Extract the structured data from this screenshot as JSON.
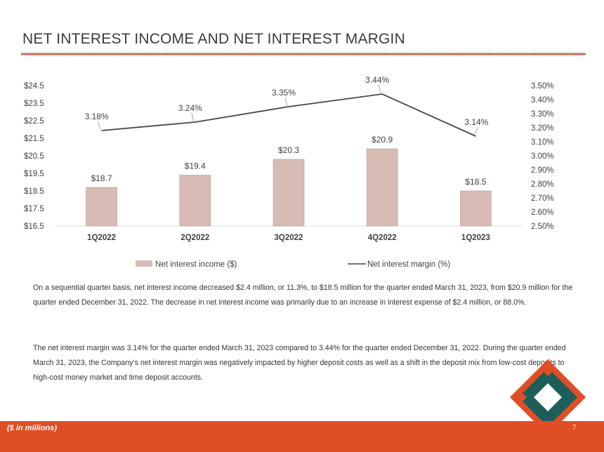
{
  "page": {
    "title": "NET INTEREST INCOME AND NET INTEREST MARGIN",
    "footnote": "($ in millions)",
    "page_number": "7",
    "colors": {
      "accent": "#e04e25",
      "bar": "#d6bcb4",
      "line": "#4a4446",
      "logo_teal": "#1e5e5a"
    }
  },
  "chart_data": {
    "type": "bar",
    "categories": [
      "1Q2022",
      "2Q2022",
      "3Q2022",
      "4Q2022",
      "1Q2023"
    ],
    "series": [
      {
        "name": "Net interest income ($)",
        "type": "bar",
        "axis": "left",
        "values": [
          18.7,
          19.4,
          20.3,
          20.9,
          18.5
        ],
        "labels": [
          "$18.7",
          "$19.4",
          "$20.3",
          "$20.9",
          "$18.5"
        ]
      },
      {
        "name": "Net interest margin (%)",
        "type": "line",
        "axis": "right",
        "values": [
          3.18,
          3.24,
          3.35,
          3.44,
          3.14
        ],
        "labels": [
          "3.18%",
          "3.24%",
          "3.35%",
          "3.44%",
          "3.14%"
        ]
      }
    ],
    "y_left": {
      "range": [
        16.5,
        24.5
      ],
      "ticks": [
        "$16.5",
        "$17.5",
        "$18.5",
        "$19.5",
        "$20.5",
        "$21.5",
        "$22.5",
        "$23.5",
        "$24.5"
      ]
    },
    "y_right": {
      "range": [
        2.5,
        3.5
      ],
      "ticks": [
        "2.50%",
        "2.60%",
        "2.70%",
        "2.80%",
        "2.90%",
        "3.00%",
        "3.10%",
        "3.20%",
        "3.30%",
        "3.40%",
        "3.50%"
      ]
    },
    "legend_position": "bottom",
    "grid": false
  },
  "commentary": {
    "paragraph1": "On a sequential quarter basis, net interest income decreased $2.4 million, or 11.3%, to $18.5 million for the quarter ended March 31, 2023, from $20.9 million for the quarter ended December 31, 2022. The decrease in net interest income was primarily due to an increase in interest expense of $2.4 million, or 88.0%.",
    "paragraph2": "The net interest margin was 3.14% for the quarter ended March 31, 2023 compared to 3.44% for the quarter ended December 31, 2022. During the quarter ended March 31, 2023, the Company’s net interest margin was negatively impacted by higher deposit costs as well as a shift in the deposit mix from low-cost deposits to high-cost money market and time deposit accounts."
  }
}
